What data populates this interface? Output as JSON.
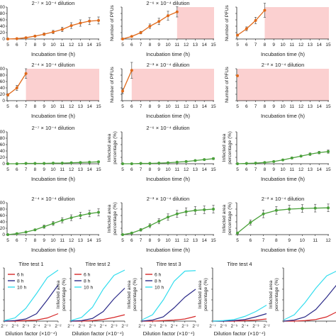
{
  "figure": {
    "colors": {
      "orange": "#e06a1b",
      "green": "#4aa03a",
      "shade": "#fbd0d0",
      "red": "#d62728",
      "navy": "#2b2a88",
      "cyan": "#33ddee"
    }
  },
  "chart_data": [
    {
      "type": "line",
      "color_key": "orange",
      "title": "2⁻⁷ × 10⁻⁴ dilution",
      "xlabel": "Incubation time (h)",
      "ylabel": "Number of PFUs",
      "x": [
        5,
        6,
        7,
        8,
        9,
        10,
        11,
        12,
        13,
        14,
        15
      ],
      "xlim": [
        5,
        15
      ],
      "ylim": [
        0,
        100
      ],
      "yticks": [
        0,
        20,
        40,
        60,
        80,
        100
      ],
      "y_tick_labels_visible": true,
      "series": [
        {
          "values": [
            0,
            1,
            4,
            9,
            15,
            22,
            30,
            42,
            50,
            56,
            58
          ],
          "error": [
            0,
            1,
            2,
            3,
            4,
            5,
            7,
            9,
            10,
            11,
            11
          ]
        }
      ]
    },
    {
      "type": "line",
      "color_key": "orange",
      "title": "2⁻⁶ × 10⁻⁴ dilution",
      "xlabel": "Incubation time (h)",
      "ylabel": "Number of PFUs",
      "x": [
        5,
        6,
        7,
        8,
        9,
        10,
        11
      ],
      "xlim": [
        5,
        15
      ],
      "ylim": [
        0,
        100
      ],
      "yticks": [
        0,
        20,
        40,
        60,
        80,
        100
      ],
      "y_tick_labels_visible": false,
      "shade_from": 11,
      "series": [
        {
          "values": [
            0,
            8,
            20,
            40,
            55,
            73,
            85
          ],
          "error": [
            0,
            2,
            4,
            7,
            10,
            14,
            16
          ]
        }
      ]
    },
    {
      "type": "line",
      "color_key": "orange",
      "title": "",
      "xlabel": "Incubation time (h)",
      "ylabel": "Number of PFUs",
      "x": [
        5,
        6,
        7,
        8
      ],
      "xlim": [
        5,
        15
      ],
      "ylim": [
        0,
        100
      ],
      "yticks": [
        0,
        20,
        40,
        60,
        80,
        100
      ],
      "y_tick_labels_visible": false,
      "shade_from": 8,
      "series": [
        {
          "values": [
            12,
            32,
            58,
            90
          ],
          "error": [
            3,
            6,
            10,
            22
          ]
        }
      ]
    },
    {
      "type": "line",
      "color_key": "orange",
      "title": "2⁻⁴ × 10⁻⁴ dilution",
      "xlabel": "Incubation time (h)",
      "ylabel": "Number of PFUs",
      "x": [
        5,
        6,
        7
      ],
      "xlim": [
        5,
        15
      ],
      "ylim": [
        0,
        100
      ],
      "yticks": [
        0,
        20,
        40,
        60,
        80,
        100
      ],
      "y_tick_labels_visible": true,
      "shade_from": 7,
      "series": [
        {
          "values": [
            18,
            40,
            85
          ],
          "error": [
            4,
            8,
            15
          ]
        }
      ]
    },
    {
      "type": "line",
      "color_key": "orange",
      "title": "2⁻³ × 10⁻⁴ dilution",
      "xlabel": "Incubation time (h)",
      "ylabel": "Number of PFUs",
      "x": [
        5,
        6
      ],
      "xlim": [
        5,
        15
      ],
      "ylim": [
        0,
        100
      ],
      "yticks": [
        0,
        20,
        40,
        60,
        80,
        100
      ],
      "y_tick_labels_visible": false,
      "shade_from": 6,
      "series": [
        {
          "values": [
            30,
            95
          ],
          "error": [
            8,
            25
          ]
        }
      ]
    },
    {
      "type": "line",
      "color_key": "orange",
      "title": "2⁻² × 10⁻⁴ dilution",
      "xlabel": "Incubation time (h)",
      "ylabel": "Number of PFUs",
      "x": [
        5
      ],
      "xlim": [
        5,
        15
      ],
      "ylim": [
        0,
        100
      ],
      "yticks": [
        0,
        20,
        40,
        60,
        80,
        100
      ],
      "y_tick_labels_visible": false,
      "shade_from": 5,
      "series": [
        {
          "values": [
            78
          ],
          "error": [
            0
          ]
        }
      ]
    },
    {
      "type": "line",
      "color_key": "green",
      "title": "2⁻⁷ × 10⁻⁴ dilution",
      "xlabel": "Incubation time (h)",
      "ylabel": "Infected area percentage (%)",
      "x": [
        5,
        6,
        7,
        8,
        9,
        10,
        11,
        12,
        13,
        14,
        15
      ],
      "xlim": [
        5,
        15
      ],
      "ylim": [
        0,
        100
      ],
      "yticks": [
        0,
        20,
        40,
        60,
        80,
        100
      ],
      "y_tick_labels_visible": true,
      "series": [
        {
          "values": [
            0,
            0,
            1,
            1,
            1,
            2,
            2,
            3,
            4,
            5,
            6
          ],
          "error": [
            0,
            0,
            0,
            0,
            1,
            1,
            1,
            1,
            1,
            1,
            1
          ]
        }
      ]
    },
    {
      "type": "line",
      "color_key": "green",
      "title": "2⁻⁶ × 10⁻⁴ dilution",
      "xlabel": "Incubation time (h)",
      "ylabel": "Infected area percentage (%)",
      "x": [
        5,
        6,
        7,
        8,
        9,
        10,
        11,
        12,
        13,
        14,
        15
      ],
      "xlim": [
        5,
        15
      ],
      "ylim": [
        0,
        100
      ],
      "yticks": [
        0,
        20,
        40,
        60,
        80,
        100
      ],
      "y_tick_labels_visible": false,
      "series": [
        {
          "values": [
            0,
            0,
            1,
            1,
            2,
            3,
            5,
            7,
            10,
            13,
            16
          ],
          "error": [
            0,
            0,
            0,
            0,
            1,
            1,
            1,
            2,
            2,
            2,
            3
          ]
        }
      ]
    },
    {
      "type": "line",
      "color_key": "green",
      "title": "",
      "xlabel": "Incubation time (h)",
      "ylabel": "Infected area percentage (%)",
      "x": [
        5,
        6,
        7,
        8,
        9,
        10,
        11,
        12,
        13,
        14,
        15
      ],
      "xlim": [
        5,
        15
      ],
      "ylim": [
        0,
        100
      ],
      "yticks": [
        0,
        20,
        40,
        60,
        80,
        100
      ],
      "y_tick_labels_visible": false,
      "series": [
        {
          "values": [
            0,
            1,
            2,
            4,
            7,
            12,
            18,
            24,
            30,
            35,
            38
          ],
          "error": [
            0,
            0,
            1,
            1,
            2,
            2,
            3,
            3,
            4,
            4,
            5
          ]
        }
      ]
    },
    {
      "type": "line",
      "color_key": "green",
      "title": "2⁻⁴ × 10⁻⁴ dilution",
      "xlabel": "Incubation time (h)",
      "ylabel": "Infected area percentage (%)",
      "x": [
        5,
        6,
        7,
        8,
        9,
        10,
        11,
        12,
        13,
        14,
        15
      ],
      "xlim": [
        5,
        15
      ],
      "ylim": [
        0,
        100
      ],
      "yticks": [
        0,
        20,
        40,
        60,
        80,
        100
      ],
      "y_tick_labels_visible": true,
      "series": [
        {
          "values": [
            0,
            3,
            8,
            15,
            25,
            35,
            45,
            53,
            60,
            66,
            70
          ],
          "error": [
            0,
            1,
            2,
            3,
            5,
            6,
            8,
            9,
            10,
            10,
            11
          ]
        }
      ]
    },
    {
      "type": "line",
      "color_key": "green",
      "title": "2⁻³ × 10⁻⁴ dilution",
      "xlabel": "Incubation time (h)",
      "ylabel": "Infected area percentage (%)",
      "x": [
        5,
        6,
        7,
        8,
        9,
        10,
        11,
        12,
        13,
        14,
        15
      ],
      "xlim": [
        5,
        15
      ],
      "ylim": [
        0,
        100
      ],
      "yticks": [
        0,
        20,
        40,
        60,
        80,
        100
      ],
      "y_tick_labels_visible": false,
      "series": [
        {
          "values": [
            0,
            5,
            15,
            28,
            42,
            55,
            65,
            72,
            76,
            78,
            80
          ],
          "error": [
            0,
            2,
            4,
            6,
            8,
            10,
            11,
            12,
            12,
            12,
            12
          ]
        }
      ]
    },
    {
      "type": "line",
      "color_key": "green",
      "title": "2⁻² × 10⁻⁴ dilution",
      "xlabel": "Incubation time (h)",
      "ylabel": "Infected area percentage (%)",
      "x": [
        5,
        6,
        7,
        8,
        9,
        10,
        11,
        12
      ],
      "xlim": [
        5,
        12
      ],
      "ylim": [
        0,
        100
      ],
      "yticks": [
        0,
        20,
        40,
        60,
        80,
        100
      ],
      "y_tick_labels_visible": false,
      "series": [
        {
          "values": [
            5,
            38,
            65,
            76,
            80,
            82,
            83,
            84
          ],
          "error": [
            2,
            8,
            12,
            12,
            12,
            12,
            12,
            12
          ]
        }
      ]
    },
    {
      "type": "line",
      "title": "Titre test 1",
      "xlabel": "Dilution factor (×10⁻⁴)",
      "ylabel": "Infected area percentage (%)",
      "x": [
        -7,
        -6,
        -5,
        -4,
        -3,
        -2
      ],
      "x_tick_labels": [
        "2⁻⁷",
        "2⁻⁶",
        "2⁻⁵",
        "2⁻⁴",
        "2⁻³",
        "2⁻²"
      ],
      "xlim": [
        -7,
        -2
      ],
      "ylim": [
        0,
        100
      ],
      "y_tick_labels_visible": false,
      "legend": "top-left",
      "series": [
        {
          "name": "6 h",
          "color_key": "red",
          "values": [
            0,
            0,
            1,
            2,
            6,
            14
          ]
        },
        {
          "name": "8 h",
          "color_key": "navy",
          "values": [
            0,
            1,
            4,
            14,
            40,
            68
          ]
        },
        {
          "name": "10 h",
          "color_key": "cyan",
          "values": [
            1,
            6,
            24,
            52,
            82,
            96
          ]
        }
      ]
    },
    {
      "type": "line",
      "title": "Titre test 2",
      "xlabel": "Dilution factor (×10⁻⁴)",
      "ylabel": "Infected area percentage (%)",
      "x": [
        -7,
        -6,
        -5,
        -4,
        -3,
        -2
      ],
      "x_tick_labels": [
        "2⁻⁷",
        "2⁻⁶",
        "2⁻⁵",
        "2⁻⁴",
        "2⁻³",
        "2⁻²"
      ],
      "xlim": [
        -7,
        -2
      ],
      "ylim": [
        0,
        100
      ],
      "y_tick_labels_visible": false,
      "legend": "top-left",
      "series": [
        {
          "name": "6 h",
          "color_key": "red",
          "values": [
            0,
            0,
            1,
            3,
            7,
            12
          ]
        },
        {
          "name": "8 h",
          "color_key": "navy",
          "values": [
            0,
            1,
            5,
            18,
            42,
            62
          ]
        },
        {
          "name": "10 h",
          "color_key": "cyan",
          "values": [
            1,
            7,
            26,
            60,
            86,
            96
          ]
        }
      ]
    },
    {
      "type": "line",
      "title": "Titre test 3",
      "xlabel": "Dilution factor (×10⁻⁴)",
      "ylabel": "Infected area percentage (%)",
      "x": [
        -7,
        -6,
        -5,
        -4,
        -3,
        -2
      ],
      "x_tick_labels": [
        "2⁻⁷",
        "2⁻⁶",
        "2⁻⁵",
        "2⁻⁴",
        "2⁻³",
        "2⁻²"
      ],
      "xlim": [
        -7,
        -2
      ],
      "ylim": [
        0,
        100
      ],
      "y_tick_labels_visible": false,
      "legend": "top-left",
      "series": [
        {
          "name": "6 h",
          "color_key": "red",
          "values": [
            0,
            0,
            1,
            2,
            4,
            9
          ]
        },
        {
          "name": "8 h",
          "color_key": "navy",
          "values": [
            0,
            2,
            8,
            25,
            45,
            60
          ]
        },
        {
          "name": "10 h",
          "color_key": "cyan",
          "values": [
            2,
            12,
            40,
            75,
            94,
            95
          ]
        }
      ]
    },
    {
      "type": "line",
      "title": "Titre test 4",
      "xlabel": "Dilution factor (×10⁻⁴)",
      "ylabel": "Infected area percentage (%)",
      "x": [
        -7,
        -6,
        -5,
        -4,
        -3,
        -2
      ],
      "x_tick_labels": [
        "2⁻⁷",
        "2⁻⁶",
        "2⁻⁵",
        "2⁻⁴",
        "2⁻³",
        "2⁻²"
      ],
      "xlim": [
        -7,
        -2
      ],
      "ylim": [
        0,
        100
      ],
      "y_tick_labels_visible": false,
      "series": [
        {
          "name": "6 h",
          "color_key": "red",
          "values": [
            0,
            0,
            0,
            1,
            2,
            4
          ]
        },
        {
          "name": "8 h",
          "color_key": "navy",
          "values": [
            0,
            0,
            1,
            3,
            8,
            14
          ]
        },
        {
          "name": "10 h",
          "color_key": "cyan",
          "values": [
            0,
            1,
            3,
            9,
            18,
            30
          ]
        }
      ]
    },
    {
      "type": "line",
      "title": "",
      "xlabel": "",
      "ylabel": "Infected area percentage (%)",
      "x": [
        -7,
        -6,
        -5,
        -4,
        -3,
        -2
      ],
      "x_tick_labels": [],
      "xlim": [
        -7,
        -2
      ],
      "ylim": [
        0,
        100
      ],
      "y_tick_labels_visible": false,
      "series": [
        {
          "name": "6 h",
          "color_key": "red",
          "values": [
            0,
            0,
            1,
            3,
            8,
            18
          ]
        },
        {
          "name": "8 h",
          "color_key": "navy",
          "values": [
            0,
            2,
            8,
            22,
            45,
            70
          ]
        },
        {
          "name": "10 h",
          "color_key": "cyan",
          "values": [
            2,
            12,
            35,
            62,
            85,
            95
          ]
        }
      ]
    }
  ]
}
